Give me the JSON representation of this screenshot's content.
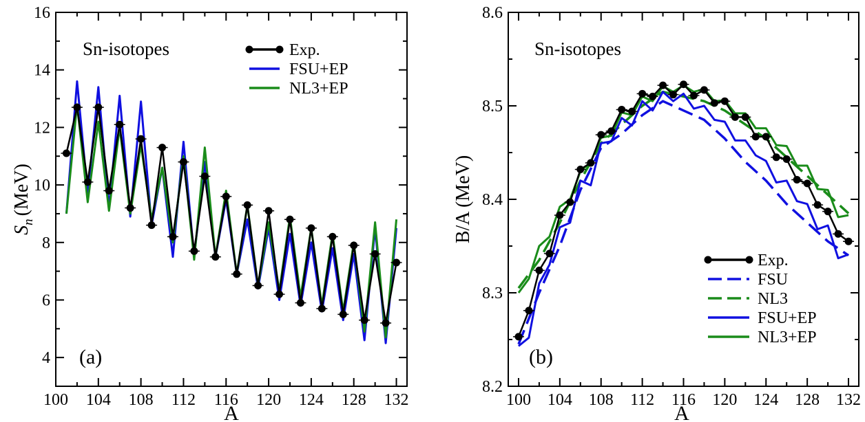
{
  "chart_data": [
    {
      "type": "line",
      "panel_label": "(a)",
      "annotation": "Sn-isotopes",
      "title": "",
      "xlabel": "A",
      "ylabel_main": "S",
      "ylabel_sub": "n",
      "ylabel_unit": "(MeV)",
      "xlim": [
        100,
        133
      ],
      "ylim": [
        3,
        16
      ],
      "xticks": [
        "100",
        "104",
        "108",
        "112",
        "116",
        "120",
        "124",
        "128",
        "132"
      ],
      "yticks": [
        "4",
        "6",
        "8",
        "10",
        "12",
        "14",
        "16"
      ],
      "legend_position": "top-right",
      "colors": {
        "exp": "#000000",
        "fsu_ep": "#1010e0",
        "nl3_ep": "#1a8c1a"
      },
      "series": [
        {
          "name": "Exp.",
          "style": "line-markers",
          "color": "#000000",
          "x": [
            101,
            102,
            103,
            104,
            105,
            106,
            107,
            108,
            109,
            110,
            111,
            112,
            113,
            114,
            115,
            116,
            117,
            118,
            119,
            120,
            121,
            122,
            123,
            124,
            125,
            126,
            127,
            128,
            129,
            130,
            131,
            132
          ],
          "y": [
            11.1,
            12.7,
            10.1,
            12.7,
            9.8,
            12.1,
            9.2,
            11.6,
            8.6,
            11.3,
            8.2,
            10.8,
            7.7,
            10.3,
            7.5,
            9.6,
            6.9,
            9.3,
            6.5,
            9.1,
            6.2,
            8.8,
            5.9,
            8.5,
            5.7,
            8.2,
            5.5,
            7.9,
            5.3,
            7.6,
            5.2,
            7.3
          ]
        },
        {
          "name": "FSU+EP",
          "style": "line",
          "color": "#1010e0",
          "x": [
            101,
            102,
            103,
            104,
            105,
            106,
            107,
            108,
            109,
            110,
            111,
            112,
            113,
            114,
            115,
            116,
            117,
            118,
            119,
            120,
            121,
            122,
            123,
            124,
            125,
            126,
            127,
            128,
            129,
            130,
            131,
            132
          ],
          "y": [
            9.0,
            13.6,
            9.7,
            13.4,
            9.2,
            13.1,
            8.9,
            12.9,
            8.6,
            10.6,
            7.5,
            11.5,
            7.5,
            10.8,
            7.5,
            9.5,
            6.9,
            8.8,
            6.4,
            8.5,
            6.0,
            8.3,
            5.8,
            8.0,
            5.6,
            7.8,
            5.3,
            7.6,
            4.6,
            8.5,
            4.5,
            8.5
          ]
        },
        {
          "name": "NL3+EP",
          "style": "line",
          "color": "#1a8c1a",
          "x": [
            101,
            102,
            103,
            104,
            105,
            106,
            107,
            108,
            109,
            110,
            111,
            112,
            113,
            114,
            115,
            116,
            117,
            118,
            119,
            120,
            121,
            122,
            123,
            124,
            125,
            126,
            127,
            128,
            129,
            130,
            131,
            132
          ],
          "y": [
            9.0,
            12.8,
            9.4,
            12.2,
            9.1,
            12.0,
            9.0,
            11.4,
            8.8,
            10.6,
            8.0,
            11.0,
            7.4,
            11.3,
            7.5,
            9.8,
            6.9,
            9.3,
            6.5,
            8.7,
            6.3,
            8.9,
            6.1,
            8.5,
            5.8,
            8.3,
            5.6,
            8.0,
            4.9,
            8.7,
            4.7,
            8.8
          ]
        }
      ]
    },
    {
      "type": "line",
      "panel_label": "(b)",
      "annotation": "Sn-isotopes",
      "title": "",
      "xlabel": "A",
      "ylabel": "B/A (MeV)",
      "xlim": [
        99,
        133
      ],
      "ylim": [
        8.2,
        8.6
      ],
      "xticks": [
        "100",
        "104",
        "108",
        "112",
        "116",
        "120",
        "124",
        "128",
        "132"
      ],
      "yticks": [
        "8.2",
        "8.3",
        "8.4",
        "8.5",
        "8.6"
      ],
      "legend_position": "bottom-right",
      "colors": {
        "exp": "#000000",
        "fsu": "#1010e0",
        "nl3": "#1a8c1a"
      },
      "series": [
        {
          "name": "Exp.",
          "style": "line-markers",
          "color": "#000000",
          "x": [
            100,
            101,
            102,
            103,
            104,
            105,
            106,
            107,
            108,
            109,
            110,
            111,
            112,
            113,
            114,
            115,
            116,
            117,
            118,
            119,
            120,
            121,
            122,
            123,
            124,
            125,
            126,
            127,
            128,
            129,
            130,
            131,
            132
          ],
          "y": [
            8.253,
            8.281,
            8.324,
            8.342,
            8.383,
            8.397,
            8.432,
            8.439,
            8.469,
            8.473,
            8.496,
            8.494,
            8.513,
            8.51,
            8.522,
            8.512,
            8.523,
            8.511,
            8.517,
            8.503,
            8.505,
            8.488,
            8.488,
            8.467,
            8.467,
            8.445,
            8.443,
            8.421,
            8.417,
            8.394,
            8.387,
            8.363,
            8.355
          ]
        },
        {
          "name": "FSU",
          "style": "dashed",
          "color": "#1010e0",
          "x": [
            100,
            102,
            104,
            106,
            108,
            110,
            112,
            114,
            116,
            118,
            120,
            122,
            124,
            126,
            128,
            130,
            132
          ],
          "y": [
            8.245,
            8.3,
            8.35,
            8.41,
            8.455,
            8.47,
            8.49,
            8.505,
            8.495,
            8.485,
            8.465,
            8.44,
            8.42,
            8.395,
            8.375,
            8.355,
            8.34
          ]
        },
        {
          "name": "NL3",
          "style": "dashed",
          "color": "#1a8c1a",
          "x": [
            100,
            102,
            104,
            106,
            108,
            110,
            112,
            114,
            116,
            118,
            120,
            122,
            124,
            126,
            128,
            130,
            132
          ],
          "y": [
            8.305,
            8.335,
            8.375,
            8.42,
            8.46,
            8.48,
            8.5,
            8.515,
            8.51,
            8.505,
            8.495,
            8.48,
            8.465,
            8.445,
            8.425,
            8.405,
            8.385
          ]
        },
        {
          "name": "FSU+EP",
          "style": "line",
          "color": "#1010e0",
          "x": [
            100,
            101,
            102,
            103,
            104,
            105,
            106,
            107,
            108,
            109,
            110,
            111,
            112,
            113,
            114,
            115,
            116,
            117,
            118,
            119,
            120,
            121,
            122,
            123,
            124,
            125,
            126,
            127,
            128,
            129,
            130,
            131,
            132
          ],
          "y": [
            8.243,
            8.252,
            8.31,
            8.33,
            8.37,
            8.375,
            8.42,
            8.415,
            8.46,
            8.462,
            8.487,
            8.479,
            8.505,
            8.495,
            8.515,
            8.505,
            8.513,
            8.497,
            8.5,
            8.485,
            8.483,
            8.463,
            8.463,
            8.447,
            8.441,
            8.418,
            8.42,
            8.398,
            8.395,
            8.368,
            8.372,
            8.337,
            8.341
          ]
        },
        {
          "name": "NL3+EP",
          "style": "line",
          "color": "#1a8c1a",
          "x": [
            100,
            101,
            102,
            103,
            104,
            105,
            106,
            107,
            108,
            109,
            110,
            111,
            112,
            113,
            114,
            115,
            116,
            117,
            118,
            119,
            120,
            121,
            122,
            123,
            124,
            125,
            126,
            127,
            128,
            129,
            130,
            131,
            132
          ],
          "y": [
            8.3,
            8.315,
            8.35,
            8.36,
            8.392,
            8.4,
            8.43,
            8.44,
            8.466,
            8.468,
            8.493,
            8.49,
            8.51,
            8.505,
            8.521,
            8.515,
            8.522,
            8.515,
            8.518,
            8.505,
            8.506,
            8.492,
            8.492,
            8.476,
            8.476,
            8.458,
            8.457,
            8.436,
            8.436,
            8.411,
            8.41,
            8.381,
            8.383
          ]
        }
      ]
    }
  ]
}
